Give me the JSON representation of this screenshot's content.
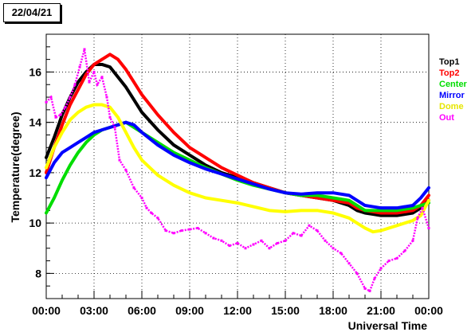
{
  "date_label": "22/04/21",
  "chart_data": {
    "type": "line",
    "title": "",
    "xlabel": "Universal Time",
    "ylabel": "Temperature(degree)",
    "xlim": [
      0,
      24
    ],
    "ylim": [
      7,
      17.5
    ],
    "x_ticks": [
      {
        "v": 0,
        "label": "00:00"
      },
      {
        "v": 3,
        "label": "03:00"
      },
      {
        "v": 6,
        "label": "06:00"
      },
      {
        "v": 9,
        "label": "09:00"
      },
      {
        "v": 12,
        "label": "12:00"
      },
      {
        "v": 15,
        "label": "15:00"
      },
      {
        "v": 18,
        "label": "18:00"
      },
      {
        "v": 21,
        "label": "21:00"
      },
      {
        "v": 24,
        "label": "00:00"
      }
    ],
    "y_ticks": [
      {
        "v": 8,
        "label": "8"
      },
      {
        "v": 10,
        "label": "10"
      },
      {
        "v": 12,
        "label": "12"
      },
      {
        "v": 14,
        "label": "14"
      },
      {
        "v": 16,
        "label": "16"
      }
    ],
    "grid": true,
    "legend_position": "right",
    "series": [
      {
        "name": "Top1",
        "color": "#000000",
        "style": "line",
        "x": [
          0,
          0.5,
          1,
          1.5,
          2,
          2.5,
          3,
          3.5,
          4,
          4.5,
          5,
          5.5,
          6,
          7,
          8,
          9,
          10,
          11,
          12,
          13,
          14,
          15,
          16,
          17,
          18,
          19,
          19.5,
          20,
          20.5,
          21,
          22,
          23,
          23.5,
          24
        ],
        "y": [
          12.6,
          13.4,
          14.3,
          15.0,
          15.6,
          16.0,
          16.3,
          16.3,
          16.2,
          15.8,
          15.4,
          14.9,
          14.4,
          13.7,
          13.1,
          12.7,
          12.3,
          12.0,
          11.8,
          11.6,
          11.4,
          11.2,
          11.1,
          11.0,
          10.9,
          10.7,
          10.5,
          10.4,
          10.35,
          10.3,
          10.3,
          10.4,
          10.6,
          10.9
        ]
      },
      {
        "name": "Top2",
        "color": "#ff0000",
        "style": "line",
        "x": [
          0,
          0.5,
          1,
          1.5,
          2,
          2.5,
          3,
          3.5,
          4,
          4.5,
          5,
          5.5,
          6,
          7,
          8,
          9,
          10,
          11,
          12,
          13,
          14,
          15,
          16,
          17,
          18,
          19,
          19.5,
          20,
          20.5,
          21,
          22,
          23,
          23.5,
          24
        ],
        "y": [
          12.0,
          13.0,
          13.9,
          14.7,
          15.3,
          15.9,
          16.3,
          16.5,
          16.7,
          16.5,
          16.1,
          15.6,
          15.1,
          14.3,
          13.6,
          13.0,
          12.6,
          12.2,
          11.9,
          11.6,
          11.4,
          11.2,
          11.1,
          11.0,
          10.9,
          10.8,
          10.6,
          10.5,
          10.45,
          10.4,
          10.4,
          10.5,
          10.7,
          11.1
        ]
      },
      {
        "name": "Center",
        "color": "#00dd00",
        "style": "line",
        "x": [
          0,
          0.5,
          1,
          1.5,
          2,
          2.5,
          3,
          3.5,
          4,
          4.5,
          5,
          5.5,
          6,
          7,
          8,
          9,
          10,
          11,
          12,
          13,
          14,
          15,
          16,
          17,
          18,
          19,
          19.5,
          20,
          21,
          22,
          23,
          23.5,
          24
        ],
        "y": [
          10.4,
          11.0,
          11.7,
          12.3,
          12.8,
          13.2,
          13.5,
          13.7,
          13.8,
          13.9,
          14.0,
          13.8,
          13.6,
          13.2,
          12.8,
          12.5,
          12.2,
          11.95,
          11.7,
          11.5,
          11.35,
          11.2,
          11.1,
          11.1,
          11.0,
          10.9,
          10.7,
          10.5,
          10.5,
          10.5,
          10.6,
          10.7,
          10.8
        ]
      },
      {
        "name": "Mirror",
        "color": "#0000ff",
        "style": "line",
        "x": [
          0,
          0.5,
          1,
          1.5,
          2,
          2.5,
          3,
          3.5,
          4,
          4.5,
          5,
          5.5,
          6,
          7,
          8,
          9,
          10,
          11,
          12,
          13,
          14,
          15,
          16,
          17,
          18,
          19,
          19.5,
          20,
          21,
          22,
          23,
          23.5,
          24
        ],
        "y": [
          11.8,
          12.4,
          12.8,
          13.0,
          13.2,
          13.4,
          13.6,
          13.7,
          13.8,
          13.9,
          14.0,
          13.9,
          13.6,
          13.1,
          12.7,
          12.4,
          12.15,
          11.95,
          11.75,
          11.55,
          11.35,
          11.2,
          11.15,
          11.2,
          11.2,
          11.1,
          10.9,
          10.7,
          10.6,
          10.6,
          10.7,
          11.0,
          11.4
        ]
      },
      {
        "name": "Dome",
        "color": "#ffff00",
        "style": "line",
        "x": [
          0,
          0.5,
          1,
          1.5,
          2,
          2.5,
          3,
          3.5,
          4,
          4.5,
          5,
          5.5,
          6,
          6.5,
          7,
          8,
          9,
          10,
          11,
          12,
          13,
          14,
          15,
          16,
          17,
          18,
          19,
          19.5,
          20,
          20.5,
          21,
          22,
          23,
          23.5,
          24
        ],
        "y": [
          12.2,
          13.0,
          13.6,
          14.1,
          14.4,
          14.6,
          14.7,
          14.7,
          14.6,
          14.2,
          13.6,
          13.0,
          12.5,
          12.2,
          11.9,
          11.5,
          11.2,
          11.0,
          10.9,
          10.8,
          10.65,
          10.5,
          10.45,
          10.5,
          10.5,
          10.4,
          10.2,
          10.0,
          9.8,
          9.65,
          9.7,
          9.9,
          10.1,
          10.3,
          10.9
        ]
      },
      {
        "name": "Out",
        "color": "#ff00ff",
        "style": "scatter",
        "x": [
          0,
          0.3,
          0.6,
          0.9,
          1.2,
          1.5,
          1.8,
          2.1,
          2.4,
          2.7,
          3.0,
          3.2,
          3.5,
          3.8,
          4.0,
          4.3,
          4.6,
          5.0,
          5.5,
          6.0,
          6.3,
          6.6,
          7.0,
          7.5,
          8.0,
          8.5,
          9.0,
          9.5,
          10.0,
          10.5,
          11.0,
          11.5,
          12.0,
          12.5,
          13.0,
          13.5,
          14.0,
          14.5,
          15.0,
          15.5,
          16.0,
          16.5,
          17.0,
          17.5,
          18.0,
          18.5,
          19.0,
          19.5,
          20.0,
          20.3,
          20.6,
          21.0,
          21.5,
          22.0,
          22.5,
          23.0,
          23.3,
          23.6,
          24.0
        ],
        "y": [
          14.8,
          15.0,
          14.2,
          14.3,
          14.6,
          15.0,
          15.5,
          16.2,
          16.9,
          15.6,
          16.0,
          15.5,
          15.8,
          15.0,
          14.2,
          13.8,
          12.5,
          12.1,
          11.4,
          11.0,
          10.6,
          10.4,
          10.2,
          9.7,
          9.6,
          9.7,
          9.75,
          9.8,
          9.6,
          9.4,
          9.3,
          9.1,
          9.2,
          9.0,
          9.15,
          9.3,
          9.0,
          9.2,
          9.3,
          9.6,
          9.5,
          9.9,
          9.7,
          9.3,
          9.0,
          8.8,
          8.4,
          8.0,
          7.4,
          7.3,
          7.8,
          8.2,
          8.5,
          8.6,
          8.9,
          9.3,
          10.2,
          10.6,
          9.8
        ]
      }
    ]
  }
}
